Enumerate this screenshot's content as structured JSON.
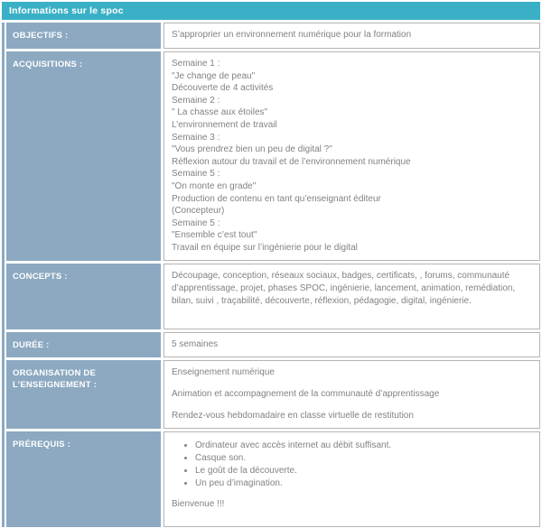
{
  "colors": {
    "header_teal": "#3AB0C6",
    "label_blue_gray": "#8CA9C1",
    "content_text_gray": "#828282",
    "cell_border_gray": "#B5B5B5"
  },
  "header": {
    "title": "Informations sur le spoc"
  },
  "rows": [
    {
      "id": "objectifs",
      "label": "OBJECTIFS :",
      "text": "S’approprier un environnement numérique pour la formation"
    },
    {
      "id": "acquisitions",
      "label": "ACQUISITIONS :",
      "lines": [
        "Semaine 1 :",
        "\"Je change de peau\"",
        "Découverte de 4 activités",
        "Semaine 2 :",
        "\" La chasse aux étoiles\"",
        "L’environnement de travail",
        "Semaine 3 :",
        "\"Vous prendrez bien un peu de digital ?\"",
        "Réflexion autour du travail et de l’environnement numérique",
        "Semaine 5 :",
        "\"On monte en grade\"",
        "Production de contenu en tant qu’enseignant éditeur",
        "(Concepteur)",
        "Semaine 5 :",
        "\"Ensemble c’est tout\"",
        "Travail en équipe sur  l’ingénierie pour le digital"
      ]
    },
    {
      "id": "concepts",
      "label": "CONCEPTS :",
      "text": "Découpage, conception,  réseaux sociaux,  badges, certificats, , forums, communauté d’apprentissage, projet, phases SPOC, ingénierie, lancement, animation, remédiation, bilan, suivi , traçabilité, découverte, réflexion, pédagogie, digital, ingénierie."
    },
    {
      "id": "duree",
      "label": "DURÉE :",
      "text": "5 semaines"
    },
    {
      "id": "organisation",
      "label": "ORGANISATION DE L’ENSEIGNEMENT :",
      "paragraphs": [
        "Enseignement numérique",
        "Animation et accompagnement de la communauté d’apprentissage",
        "Rendez-vous hebdomadaire en classe virtuelle de restitution"
      ]
    },
    {
      "id": "prerequis",
      "label": "PRÉREQUIS :",
      "bullets": [
        "Ordinateur avec accès internet au débit suffisant.",
        "Casque son.",
        "Le goût de la découverte.",
        "Un peu d’imagination."
      ],
      "footer": "Bienvenue !!!"
    }
  ]
}
